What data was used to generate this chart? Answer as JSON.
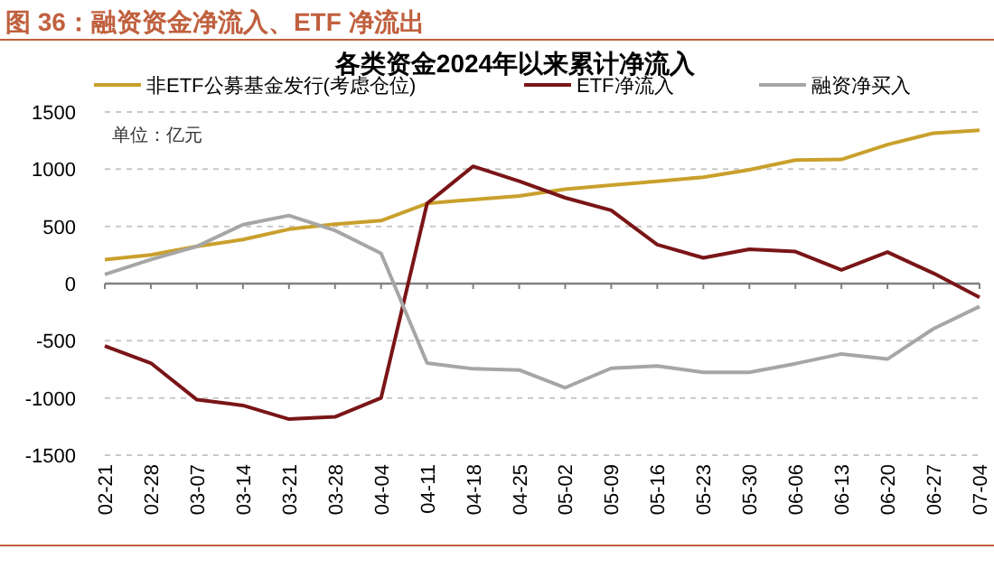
{
  "chart_data": {
    "type": "line",
    "title": "各类资金2024年以来累计净流入",
    "categories": [
      "02-21",
      "02-28",
      "03-07",
      "03-14",
      "03-21",
      "03-28",
      "04-04",
      "04-11",
      "04-18",
      "04-25",
      "05-02",
      "05-09",
      "05-16",
      "05-23",
      "05-30",
      "06-06",
      "06-13",
      "06-20",
      "06-27",
      "07-04"
    ],
    "series": [
      {
        "name": "非ETF公募基金发行(考虑仓位)",
        "color": "#c9a02c",
        "values": [
          210,
          250,
          325,
          385,
          475,
          520,
          550,
          700,
          735,
          765,
          825,
          860,
          895,
          930,
          995,
          1080,
          1085,
          1215,
          1315,
          1340
        ]
      },
      {
        "name": "ETF净流入",
        "color": "#7a1517",
        "values": [
          -545,
          -695,
          -1015,
          -1065,
          -1185,
          -1165,
          -1000,
          700,
          1025,
          895,
          750,
          640,
          340,
          225,
          300,
          280,
          120,
          275,
          90,
          -120
        ]
      },
      {
        "name": "融资净买入",
        "color": "#a6a6a6",
        "values": [
          80,
          210,
          325,
          515,
          595,
          465,
          265,
          -695,
          -745,
          -755,
          -910,
          -740,
          -720,
          -775,
          -775,
          -700,
          -615,
          -660,
          -395,
          -200
        ]
      }
    ],
    "ylim": [
      -1500,
      1500
    ],
    "yticks": [
      -1500,
      -1000,
      -500,
      0,
      500,
      1000,
      1500
    ],
    "grid": "y",
    "legend": "top",
    "marker": "none",
    "line_style": "solid",
    "annotations": [
      "图 36：融资资金净流入、ETF 净流出",
      "单位：亿元"
    ]
  }
}
